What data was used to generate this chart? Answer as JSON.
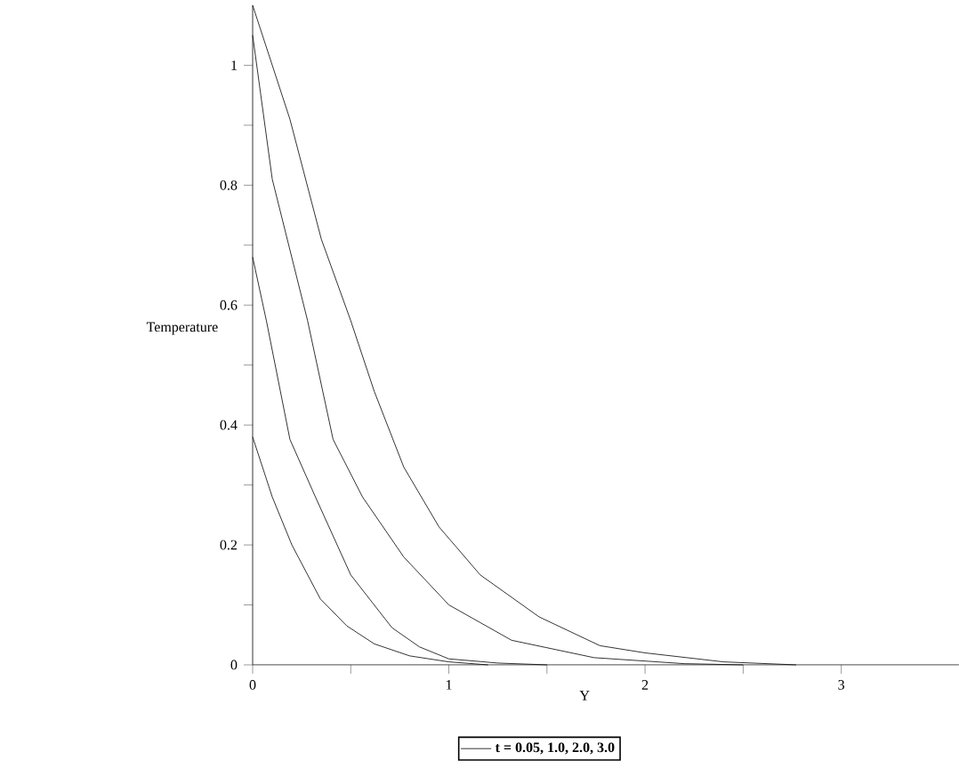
{
  "chart_data": {
    "type": "line",
    "xlabel": "Y",
    "ylabel": "Temperature",
    "xlim": [
      0,
      3.6
    ],
    "ylim": [
      0,
      1.1
    ],
    "xticks": [
      0,
      {
        "value": 0.5,
        "label": null
      },
      1,
      {
        "value": 1.5,
        "label": null
      },
      2,
      {
        "value": 2.5,
        "label": null
      },
      3
    ],
    "yticks": [
      0,
      {
        "value": 0.1,
        "label": null
      },
      0.2,
      {
        "value": 0.3,
        "label": null
      },
      0.4,
      {
        "value": 0.5,
        "label": null
      },
      0.6,
      {
        "value": 0.7,
        "label": null
      },
      0.8,
      {
        "value": 0.9,
        "label": null
      },
      1
    ],
    "legend": "bottom",
    "grid": false,
    "marker": "none",
    "line_style": "solid",
    "series": [
      {
        "name": "t = 0.05, 1.0, 2.0, 3.0",
        "color": "#000000",
        "x": [
          0,
          0.1,
          0.2,
          0.345,
          0.48,
          0.62,
          0.8,
          1.0,
          1.2
        ],
        "values": [
          0.38,
          0.28,
          0.2,
          0.11,
          0.065,
          0.035,
          0.015,
          0.005,
          0
        ]
      },
      {
        "color": "#000000",
        "x": [
          0,
          0.07,
          0.19,
          0.32,
          0.5,
          0.71,
          0.85,
          1.0,
          1.25,
          1.5
        ],
        "values": [
          0.68,
          0.574,
          0.376,
          0.28,
          0.15,
          0.062,
          0.03,
          0.01,
          0.003,
          0
        ]
      },
      {
        "color": "#000000",
        "x": [
          0,
          0.1,
          0.28,
          0.41,
          0.56,
          0.77,
          1.0,
          1.32,
          1.74,
          2.2,
          2.5
        ],
        "values": [
          1.05,
          0.81,
          0.574,
          0.376,
          0.28,
          0.18,
          0.1,
          0.041,
          0.012,
          0.002,
          0
        ]
      },
      {
        "color": "#000000",
        "x": [
          0,
          0.19,
          0.35,
          0.5,
          0.62,
          0.77,
          0.95,
          1.16,
          1.46,
          1.77,
          2.0,
          2.4,
          2.77
        ],
        "values": [
          1.1,
          0.91,
          0.71,
          0.574,
          0.456,
          0.33,
          0.23,
          0.15,
          0.08,
          0.032,
          0.02,
          0.005,
          0
        ]
      }
    ]
  }
}
